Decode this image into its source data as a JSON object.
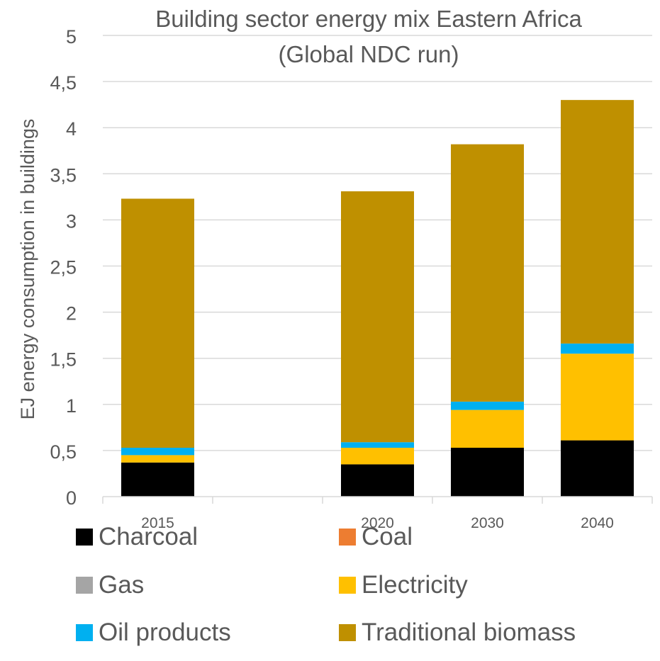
{
  "chart_data": {
    "type": "bar",
    "stacked": true,
    "title": [
      "Building sector energy mix Eastern Africa",
      "(Global NDC run)"
    ],
    "ylabel": "EJ energy consumption in buildings",
    "xlabel": "",
    "ylim": [
      0,
      5
    ],
    "yticks": [
      "0",
      "0,5",
      "1",
      "1,5",
      "2",
      "2,5",
      "3",
      "3,5",
      "4",
      "4,5",
      "5"
    ],
    "ytick_values": [
      0,
      0.5,
      1,
      1.5,
      2,
      2.5,
      3,
      3.5,
      4,
      4.5,
      5
    ],
    "categories": [
      "2015",
      "",
      "2020",
      "2030",
      "2040"
    ],
    "grid": true,
    "legend_position": "bottom",
    "series": [
      {
        "name": "Charcoal",
        "color": "#000000",
        "values": [
          0.37,
          null,
          0.35,
          0.53,
          0.61
        ]
      },
      {
        "name": "Coal",
        "color": "#ED7D31",
        "values": [
          0,
          null,
          0,
          0,
          0
        ]
      },
      {
        "name": "Gas",
        "color": "#A5A5A5",
        "values": [
          0,
          null,
          0,
          0,
          0
        ]
      },
      {
        "name": "Electricity",
        "color": "#FFC000",
        "values": [
          0.08,
          null,
          0.18,
          0.41,
          0.94
        ]
      },
      {
        "name": "Oil products",
        "color": "#00B0F0",
        "values": [
          0.08,
          null,
          0.06,
          0.09,
          0.11
        ]
      },
      {
        "name": "Traditional biomass",
        "color": "#BF9000",
        "values": [
          2.7,
          null,
          2.72,
          2.79,
          2.64
        ]
      }
    ]
  }
}
